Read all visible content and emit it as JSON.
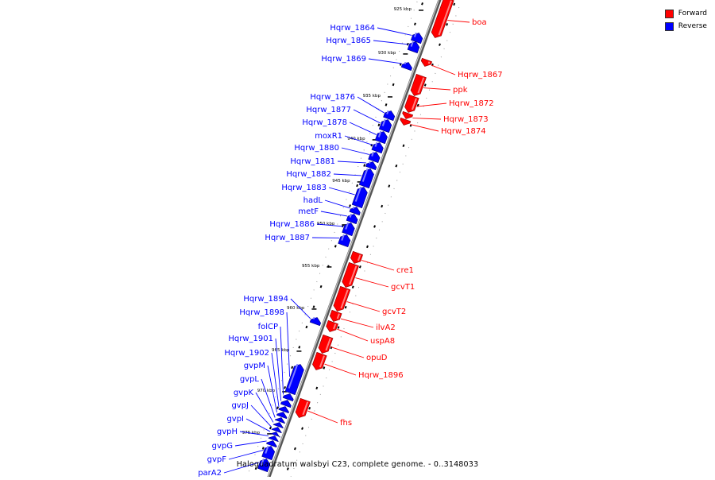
{
  "caption": "Haloquadratum walsbyi C23, complete genome. - 0..3148033",
  "legend": {
    "forward_label": "Forward",
    "reverse_label": "Reverse",
    "forward_color": "#ff0000",
    "reverse_color": "#0000ff"
  },
  "scale_ticks": [
    {
      "label": "925 kbp",
      "kbp": 925
    },
    {
      "label": "930 kbp",
      "kbp": 930
    },
    {
      "label": "935 kbp",
      "kbp": 935
    },
    {
      "label": "940 kbp",
      "kbp": 940
    },
    {
      "label": "945 kbp",
      "kbp": 945
    },
    {
      "label": "950 kbp",
      "kbp": 950
    },
    {
      "label": "955 kbp",
      "kbp": 955
    },
    {
      "label": "960 kbp",
      "kbp": 960
    },
    {
      "label": "965 kbp",
      "kbp": 965
    },
    {
      "label": "970 kbp",
      "kbp": 970
    },
    {
      "label": "975 kbp",
      "kbp": 975
    }
  ],
  "genes": [
    {
      "name": "boa",
      "strand": "forward"
    },
    {
      "name": "Hqrw_1864",
      "strand": "reverse"
    },
    {
      "name": "Hqrw_1865",
      "strand": "reverse"
    },
    {
      "name": "Hqrw_1867",
      "strand": "forward"
    },
    {
      "name": "Hqrw_1869",
      "strand": "reverse"
    },
    {
      "name": "ppk",
      "strand": "forward"
    },
    {
      "name": "Hqrw_1872",
      "strand": "forward"
    },
    {
      "name": "Hqrw_1873",
      "strand": "forward"
    },
    {
      "name": "Hqrw_1874",
      "strand": "forward"
    },
    {
      "name": "Hqrw_1876",
      "strand": "reverse"
    },
    {
      "name": "Hqrw_1877",
      "strand": "reverse"
    },
    {
      "name": "Hqrw_1878",
      "strand": "reverse"
    },
    {
      "name": "moxR1",
      "strand": "reverse"
    },
    {
      "name": "Hqrw_1880",
      "strand": "reverse"
    },
    {
      "name": "Hqrw_1881",
      "strand": "reverse"
    },
    {
      "name": "Hqrw_1882",
      "strand": "reverse"
    },
    {
      "name": "Hqrw_1883",
      "strand": "reverse"
    },
    {
      "name": "hadL",
      "strand": "reverse"
    },
    {
      "name": "metF",
      "strand": "reverse"
    },
    {
      "name": "Hqrw_1886",
      "strand": "reverse"
    },
    {
      "name": "Hqrw_1887",
      "strand": "reverse"
    },
    {
      "name": "cre1",
      "strand": "forward"
    },
    {
      "name": "gcvT1",
      "strand": "forward"
    },
    {
      "name": "gcvT2",
      "strand": "forward"
    },
    {
      "name": "ilvA2",
      "strand": "forward"
    },
    {
      "name": "uspA8",
      "strand": "forward"
    },
    {
      "name": "opuD",
      "strand": "forward"
    },
    {
      "name": "Hqrw_1896",
      "strand": "forward"
    },
    {
      "name": "Hqrw_1894",
      "strand": "reverse"
    },
    {
      "name": "Hqrw_1898",
      "strand": "reverse"
    },
    {
      "name": "folCP",
      "strand": "reverse"
    },
    {
      "name": "Hqrw_1901",
      "strand": "reverse"
    },
    {
      "name": "Hqrw_1902",
      "strand": "reverse"
    },
    {
      "name": "gvpM",
      "strand": "reverse"
    },
    {
      "name": "gvpL",
      "strand": "reverse"
    },
    {
      "name": "gvpK",
      "strand": "reverse"
    },
    {
      "name": "gvpJ",
      "strand": "reverse"
    },
    {
      "name": "gvpI",
      "strand": "reverse"
    },
    {
      "name": "gvpH",
      "strand": "reverse"
    },
    {
      "name": "gvpG",
      "strand": "reverse"
    },
    {
      "name": "gvpF",
      "strand": "reverse"
    },
    {
      "name": "parA2",
      "strand": "reverse"
    },
    {
      "name": "fhs",
      "strand": "forward"
    }
  ]
}
